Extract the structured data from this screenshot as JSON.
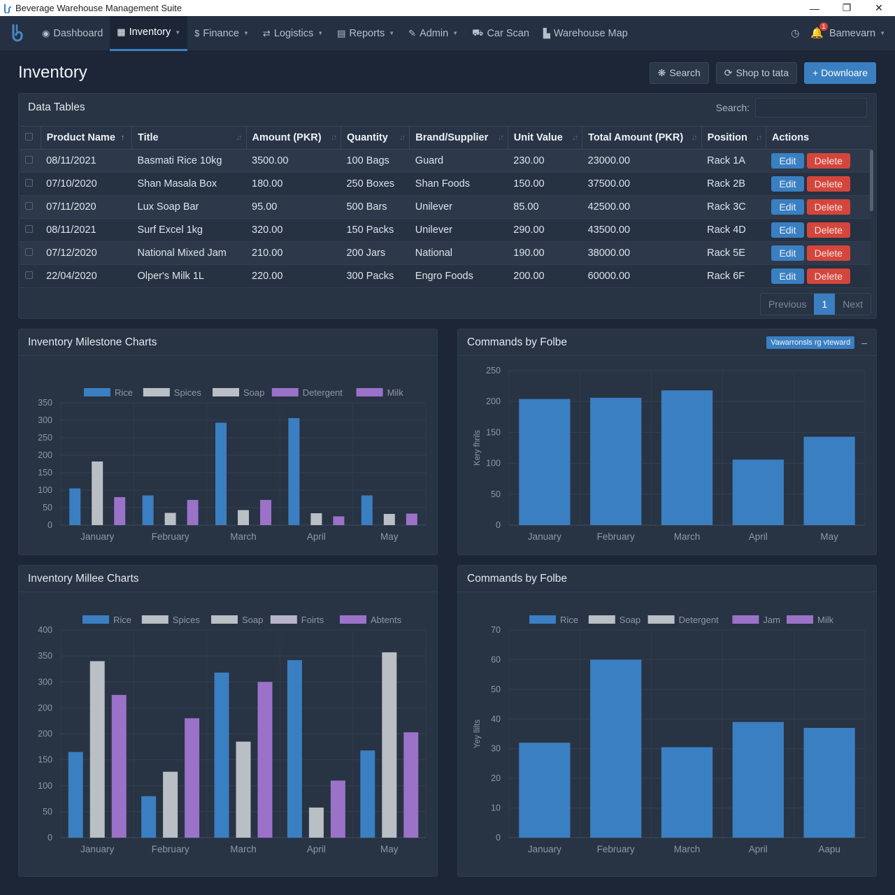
{
  "window": {
    "title": "Beverage Warehouse Management Suite",
    "controls": [
      "minimize",
      "maximize",
      "close"
    ]
  },
  "navbar": {
    "items": [
      {
        "label": "Dashboard",
        "icon": "dashboard-icon",
        "glyph": "◉",
        "caret": false,
        "active": false
      },
      {
        "label": "Inventory",
        "icon": "grid-icon",
        "glyph": "▦",
        "caret": true,
        "active": true
      },
      {
        "label": "Finance",
        "icon": "dollar-icon",
        "glyph": "$",
        "caret": true,
        "active": false
      },
      {
        "label": "Logistics",
        "icon": "exchange-icon",
        "glyph": "⇄",
        "caret": true,
        "active": false
      },
      {
        "label": "Reports",
        "icon": "report-icon",
        "glyph": "▤",
        "caret": true,
        "active": false
      },
      {
        "label": "Admin",
        "icon": "wrench-icon",
        "glyph": "✎",
        "caret": true,
        "active": false
      },
      {
        "label": "Car Scan",
        "icon": "car-icon",
        "glyph": "⛟",
        "caret": false,
        "active": false
      },
      {
        "label": "Warehouse Map",
        "icon": "sitemap-icon",
        "glyph": "▙",
        "caret": false,
        "active": false
      }
    ],
    "notification_count": "1",
    "user": "Bamevarn"
  },
  "page": {
    "title": "Inventory",
    "buttons": {
      "search": "Search",
      "sync": "Shop to tata",
      "download": "+ Downloare"
    }
  },
  "table_panel": {
    "title": "Data Tables",
    "search_label": "Search:",
    "search_value": "",
    "columns": [
      "Product Name",
      "Title",
      "Amount (PKR)",
      "Quantity",
      "Brand/Supplier",
      "Unit Value",
      "Total Amount (PKR)",
      "Position",
      "Actions"
    ],
    "rows": [
      {
        "date": "08/11/2021",
        "title": "Basmati Rice 10kg",
        "amount": "3500.00",
        "qty": "100 Bags",
        "brand": "Guard",
        "unit": "230.00",
        "total": "23000.00",
        "pos": "Rack 1A"
      },
      {
        "date": "07/10/2020",
        "title": "Shan Masala Box",
        "amount": "180.00",
        "qty": "250 Boxes",
        "brand": "Shan Foods",
        "unit": "150.00",
        "total": "37500.00",
        "pos": "Rack 2B"
      },
      {
        "date": "07/11/2020",
        "title": "Lux Soap Bar",
        "amount": "95.00",
        "qty": "500 Bars",
        "brand": "Unilever",
        "unit": "85.00",
        "total": "42500.00",
        "pos": "Rack 3C"
      },
      {
        "date": "08/11/2021",
        "title": "Surf Excel 1kg",
        "amount": "320.00",
        "qty": "150 Packs",
        "brand": "Unilever",
        "unit": "290.00",
        "total": "43500.00",
        "pos": "Rack 4D"
      },
      {
        "date": "07/12/2020",
        "title": "National Mixed Jam",
        "amount": "210.00",
        "qty": "200 Jars",
        "brand": "National",
        "unit": "190.00",
        "total": "38000.00",
        "pos": "Rack 5E"
      },
      {
        "date": "22/04/2020",
        "title": "Olper's Milk 1L",
        "amount": "220.00",
        "qty": "300 Packs",
        "brand": "Engro Foods",
        "unit": "200.00",
        "total": "60000.00",
        "pos": "Rack 6F"
      }
    ],
    "edit_label": "Edit",
    "delete_label": "Delete",
    "pagination": {
      "previous": "Previous",
      "current": "1",
      "next": "Next"
    }
  },
  "colors": {
    "accent": "#3a7fc1",
    "danger": "#d4463c",
    "gray_series": "#b9bfc4",
    "purple_series": "#9a72c8"
  },
  "chart_data": [
    {
      "panel_title": "Inventory Milestone Charts",
      "type": "bar",
      "title": "",
      "xlabel": "",
      "ylabel": "",
      "ylim": [
        0,
        350
      ],
      "yticks": [
        "0",
        "50",
        "100",
        "150",
        "200",
        "250",
        "300",
        "350"
      ],
      "grid": true,
      "legend_position": "top-center",
      "legend": [
        {
          "name": "Rice",
          "color": "#3a7fc1"
        },
        {
          "name": "Spices",
          "color": "#b9bfc4"
        },
        {
          "name": "Soap",
          "color": "#b9bfc4"
        },
        {
          "name": "Detergent",
          "color": "#9a72c8"
        },
        {
          "name": "Milk",
          "color": "#9a72c8"
        }
      ],
      "categories": [
        "January",
        "February",
        "March",
        "April",
        "May"
      ],
      "series": [
        {
          "name": "Rice",
          "color": "#3a7fc1",
          "values": [
            105,
            85,
            293,
            306,
            85
          ]
        },
        {
          "name": "Spices",
          "color": "#b9bfc4",
          "values": [
            182,
            35,
            43,
            34,
            32
          ]
        },
        {
          "name": "Detergent",
          "color": "#9a72c8",
          "values": [
            80,
            72,
            72,
            25,
            33
          ]
        }
      ]
    },
    {
      "panel_title": "Commands by Folbe",
      "chip": "Vawarronsls rg vteward",
      "type": "bar",
      "title": "",
      "xlabel": "",
      "ylabel": "Kery fhrils",
      "ylim": [
        0,
        250
      ],
      "yticks": [
        "0",
        "50",
        "100",
        "150",
        "200",
        "250"
      ],
      "grid": true,
      "legend": [],
      "categories": [
        "January",
        "February",
        "March",
        "April",
        "May"
      ],
      "series": [
        {
          "name": "Value",
          "color": "#3a7fc1",
          "values": [
            204,
            206,
            218,
            106,
            143
          ]
        }
      ]
    },
    {
      "panel_title": "Inventory Millee Charts",
      "type": "bar",
      "title": "",
      "xlabel": "",
      "ylabel": "",
      "ylim": [
        0,
        400
      ],
      "yticks": [
        "0",
        "50",
        "100",
        "150",
        "200",
        "200",
        "300",
        "350",
        "400"
      ],
      "grid": true,
      "legend_position": "top-center",
      "legend": [
        {
          "name": "Rice",
          "color": "#3a7fc1"
        },
        {
          "name": "Spices",
          "color": "#b9bfc4"
        },
        {
          "name": "Soap",
          "color": "#b9bfc4"
        },
        {
          "name": "Foirts",
          "color": "#b7b3cc"
        },
        {
          "name": "Abtents",
          "color": "#9a72c8"
        }
      ],
      "categories": [
        "January",
        "February",
        "March",
        "April",
        "May"
      ],
      "series": [
        {
          "name": "Rice",
          "color": "#3a7fc1",
          "values": [
            165,
            80,
            318,
            342,
            168
          ]
        },
        {
          "name": "Spices",
          "color": "#b9bfc4",
          "values": [
            340,
            127,
            185,
            58,
            357
          ]
        },
        {
          "name": "Abtents",
          "color": "#9a72c8",
          "values": [
            275,
            230,
            300,
            110,
            203
          ]
        }
      ]
    },
    {
      "panel_title": "Commands by Folbe",
      "type": "bar",
      "title": "",
      "xlabel": "",
      "ylabel": "Yey llilts",
      "ylim": [
        0,
        70
      ],
      "yticks": [
        "0",
        "10",
        "20",
        "30",
        "40",
        "50",
        "60",
        "70"
      ],
      "grid": true,
      "legend_position": "top-center",
      "legend": [
        {
          "name": "Rice",
          "color": "#3a7fc1"
        },
        {
          "name": "Soap",
          "color": "#b9bfc4"
        },
        {
          "name": "Detergent",
          "color": "#b9bfc4"
        },
        {
          "name": "Jam",
          "color": "#9a72c8"
        },
        {
          "name": "Milk",
          "color": "#9a72c8"
        }
      ],
      "categories": [
        "January",
        "February",
        "March",
        "April",
        "Aapu"
      ],
      "series": [
        {
          "name": "Rice",
          "color": "#3a7fc1",
          "values": [
            32,
            60,
            30.5,
            39,
            37
          ]
        }
      ]
    }
  ]
}
